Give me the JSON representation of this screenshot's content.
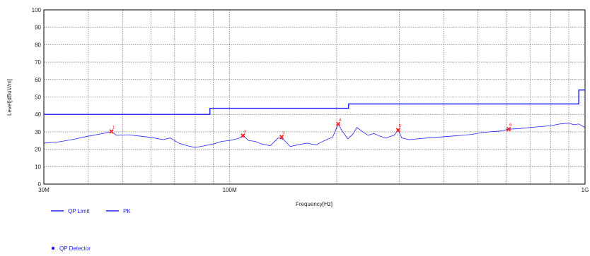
{
  "chart_data": {
    "type": "line",
    "xlabel": "Frequency[Hz]",
    "ylabel": "Level[dBuV/m]",
    "x_scale": "log",
    "xlim": [
      30000000,
      1000000000
    ],
    "ylim": [
      0,
      100
    ],
    "grid": true,
    "x_tick_labels": [
      {
        "value": 30000000,
        "label": "30M"
      },
      {
        "value": 100000000,
        "label": "100M"
      },
      {
        "value": 1000000000,
        "label": "1G"
      }
    ],
    "y_ticks": [
      0,
      10,
      20,
      30,
      40,
      50,
      60,
      70,
      80,
      90,
      100
    ],
    "limit_line": {
      "name": "QP Limit",
      "color": "#2020ff",
      "points": [
        [
          30000000,
          40
        ],
        [
          88000000,
          40
        ],
        [
          88000000,
          43.5
        ],
        [
          216000000,
          43.5
        ],
        [
          216000000,
          46
        ],
        [
          960000000,
          46
        ],
        [
          960000000,
          54
        ],
        [
          1000000000,
          54
        ]
      ]
    },
    "pk_trace": {
      "name": "PK",
      "color": "#2020ff",
      "points": [
        [
          30000000,
          23.5
        ],
        [
          33000000,
          24.2
        ],
        [
          36000000,
          25.5
        ],
        [
          40000000,
          27.5
        ],
        [
          44000000,
          29.0
        ],
        [
          46500000,
          30.2
        ],
        [
          48000000,
          28.0
        ],
        [
          52000000,
          28.3
        ],
        [
          56000000,
          27.5
        ],
        [
          60000000,
          26.8
        ],
        [
          65000000,
          25.5
        ],
        [
          68000000,
          26.5
        ],
        [
          72000000,
          23.5
        ],
        [
          76000000,
          22.0
        ],
        [
          80000000,
          21.0
        ],
        [
          85000000,
          22.0
        ],
        [
          90000000,
          23.0
        ],
        [
          95000000,
          24.5
        ],
        [
          100000000,
          25.0
        ],
        [
          106000000,
          26.2
        ],
        [
          109000000,
          28.0
        ],
        [
          113000000,
          25.0
        ],
        [
          118000000,
          24.5
        ],
        [
          123000000,
          23.0
        ],
        [
          130000000,
          22.0
        ],
        [
          137000000,
          26.5
        ],
        [
          142000000,
          25.5
        ],
        [
          148000000,
          21.5
        ],
        [
          155000000,
          22.5
        ],
        [
          165000000,
          23.5
        ],
        [
          175000000,
          22.5
        ],
        [
          185000000,
          25.0
        ],
        [
          195000000,
          27.0
        ],
        [
          202000000,
          34.5
        ],
        [
          208000000,
          30.0
        ],
        [
          215000000,
          26.0
        ],
        [
          222000000,
          28.5
        ],
        [
          228000000,
          32.5
        ],
        [
          235000000,
          30.5
        ],
        [
          245000000,
          28.0
        ],
        [
          255000000,
          29.0
        ],
        [
          265000000,
          27.5
        ],
        [
          275000000,
          26.5
        ],
        [
          290000000,
          28.0
        ],
        [
          298000000,
          31.0
        ],
        [
          305000000,
          26.5
        ],
        [
          320000000,
          25.5
        ],
        [
          340000000,
          26.0
        ],
        [
          360000000,
          26.5
        ],
        [
          390000000,
          27.0
        ],
        [
          420000000,
          27.5
        ],
        [
          450000000,
          28.0
        ],
        [
          480000000,
          28.5
        ],
        [
          510000000,
          29.5
        ],
        [
          540000000,
          30.0
        ],
        [
          580000000,
          30.5
        ],
        [
          610000000,
          31.5
        ],
        [
          650000000,
          31.8
        ],
        [
          700000000,
          32.5
        ],
        [
          750000000,
          33.0
        ],
        [
          800000000,
          33.5
        ],
        [
          850000000,
          34.5
        ],
        [
          900000000,
          35.0
        ],
        [
          930000000,
          34.0
        ],
        [
          960000000,
          34.5
        ],
        [
          1000000000,
          32.5
        ]
      ]
    },
    "markers": [
      {
        "label": "1",
        "x": 46500000,
        "y": 30.2
      },
      {
        "label": "2",
        "x": 109000000,
        "y": 27.8
      },
      {
        "label": "3",
        "x": 140000000,
        "y": 27.0
      },
      {
        "label": "4",
        "x": 202000000,
        "y": 34.5
      },
      {
        "label": "5",
        "x": 298000000,
        "y": 31.0
      },
      {
        "label": "6",
        "x": 610000000,
        "y": 31.5
      }
    ],
    "marker_color": "#ff2020",
    "legend": {
      "placement": "bottom-left",
      "lines": [
        {
          "label": "QP Limit"
        },
        {
          "label": "PK"
        }
      ],
      "detector": {
        "label": "QP Detector"
      }
    }
  }
}
